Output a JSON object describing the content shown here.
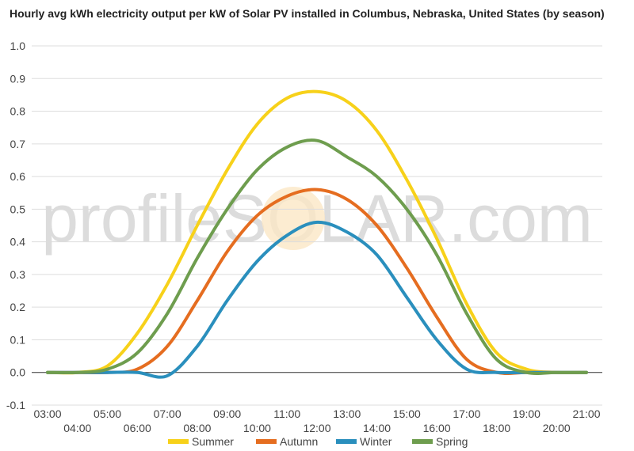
{
  "chart_data": {
    "type": "line",
    "title": "Hourly avg kWh electricity output per kW of Solar PV installed in Columbus, Nebraska, United States (by season)",
    "watermark": "profileSOLAR.com",
    "xlabel": "",
    "ylabel": "",
    "ylim": [
      -0.1,
      1.0
    ],
    "y_ticks": [
      "-0.1",
      "0.0",
      "0.1",
      "0.2",
      "0.3",
      "0.4",
      "0.5",
      "0.6",
      "0.7",
      "0.8",
      "0.9",
      "1.0"
    ],
    "grid": true,
    "legend_position": "bottom",
    "x": [
      "03:00",
      "04:00",
      "05:00",
      "06:00",
      "07:00",
      "08:00",
      "09:00",
      "10:00",
      "11:00",
      "12:00",
      "13:00",
      "14:00",
      "15:00",
      "16:00",
      "17:00",
      "18:00",
      "19:00",
      "20:00",
      "21:00"
    ],
    "series": [
      {
        "name": "Summer",
        "color": "#f7d11a",
        "values": [
          0.0,
          0.0,
          0.02,
          0.12,
          0.27,
          0.45,
          0.62,
          0.76,
          0.84,
          0.86,
          0.83,
          0.74,
          0.59,
          0.41,
          0.21,
          0.06,
          0.01,
          0.0,
          0.0
        ]
      },
      {
        "name": "Autumn",
        "color": "#e56d20",
        "values": [
          0.0,
          0.0,
          0.0,
          0.01,
          0.08,
          0.22,
          0.37,
          0.48,
          0.54,
          0.56,
          0.53,
          0.45,
          0.32,
          0.17,
          0.04,
          0.0,
          0.0,
          0.0,
          0.0
        ]
      },
      {
        "name": "Winter",
        "color": "#2a8fbd",
        "values": [
          0.0,
          0.0,
          0.0,
          0.0,
          -0.01,
          0.08,
          0.22,
          0.34,
          0.42,
          0.46,
          0.43,
          0.36,
          0.23,
          0.1,
          0.01,
          0.0,
          0.0,
          0.0,
          0.0
        ]
      },
      {
        "name": "Spring",
        "color": "#6e9d4e",
        "values": [
          0.0,
          0.0,
          0.01,
          0.06,
          0.18,
          0.35,
          0.5,
          0.62,
          0.69,
          0.71,
          0.66,
          0.6,
          0.5,
          0.36,
          0.18,
          0.04,
          0.0,
          0.0,
          0.0
        ]
      }
    ]
  }
}
